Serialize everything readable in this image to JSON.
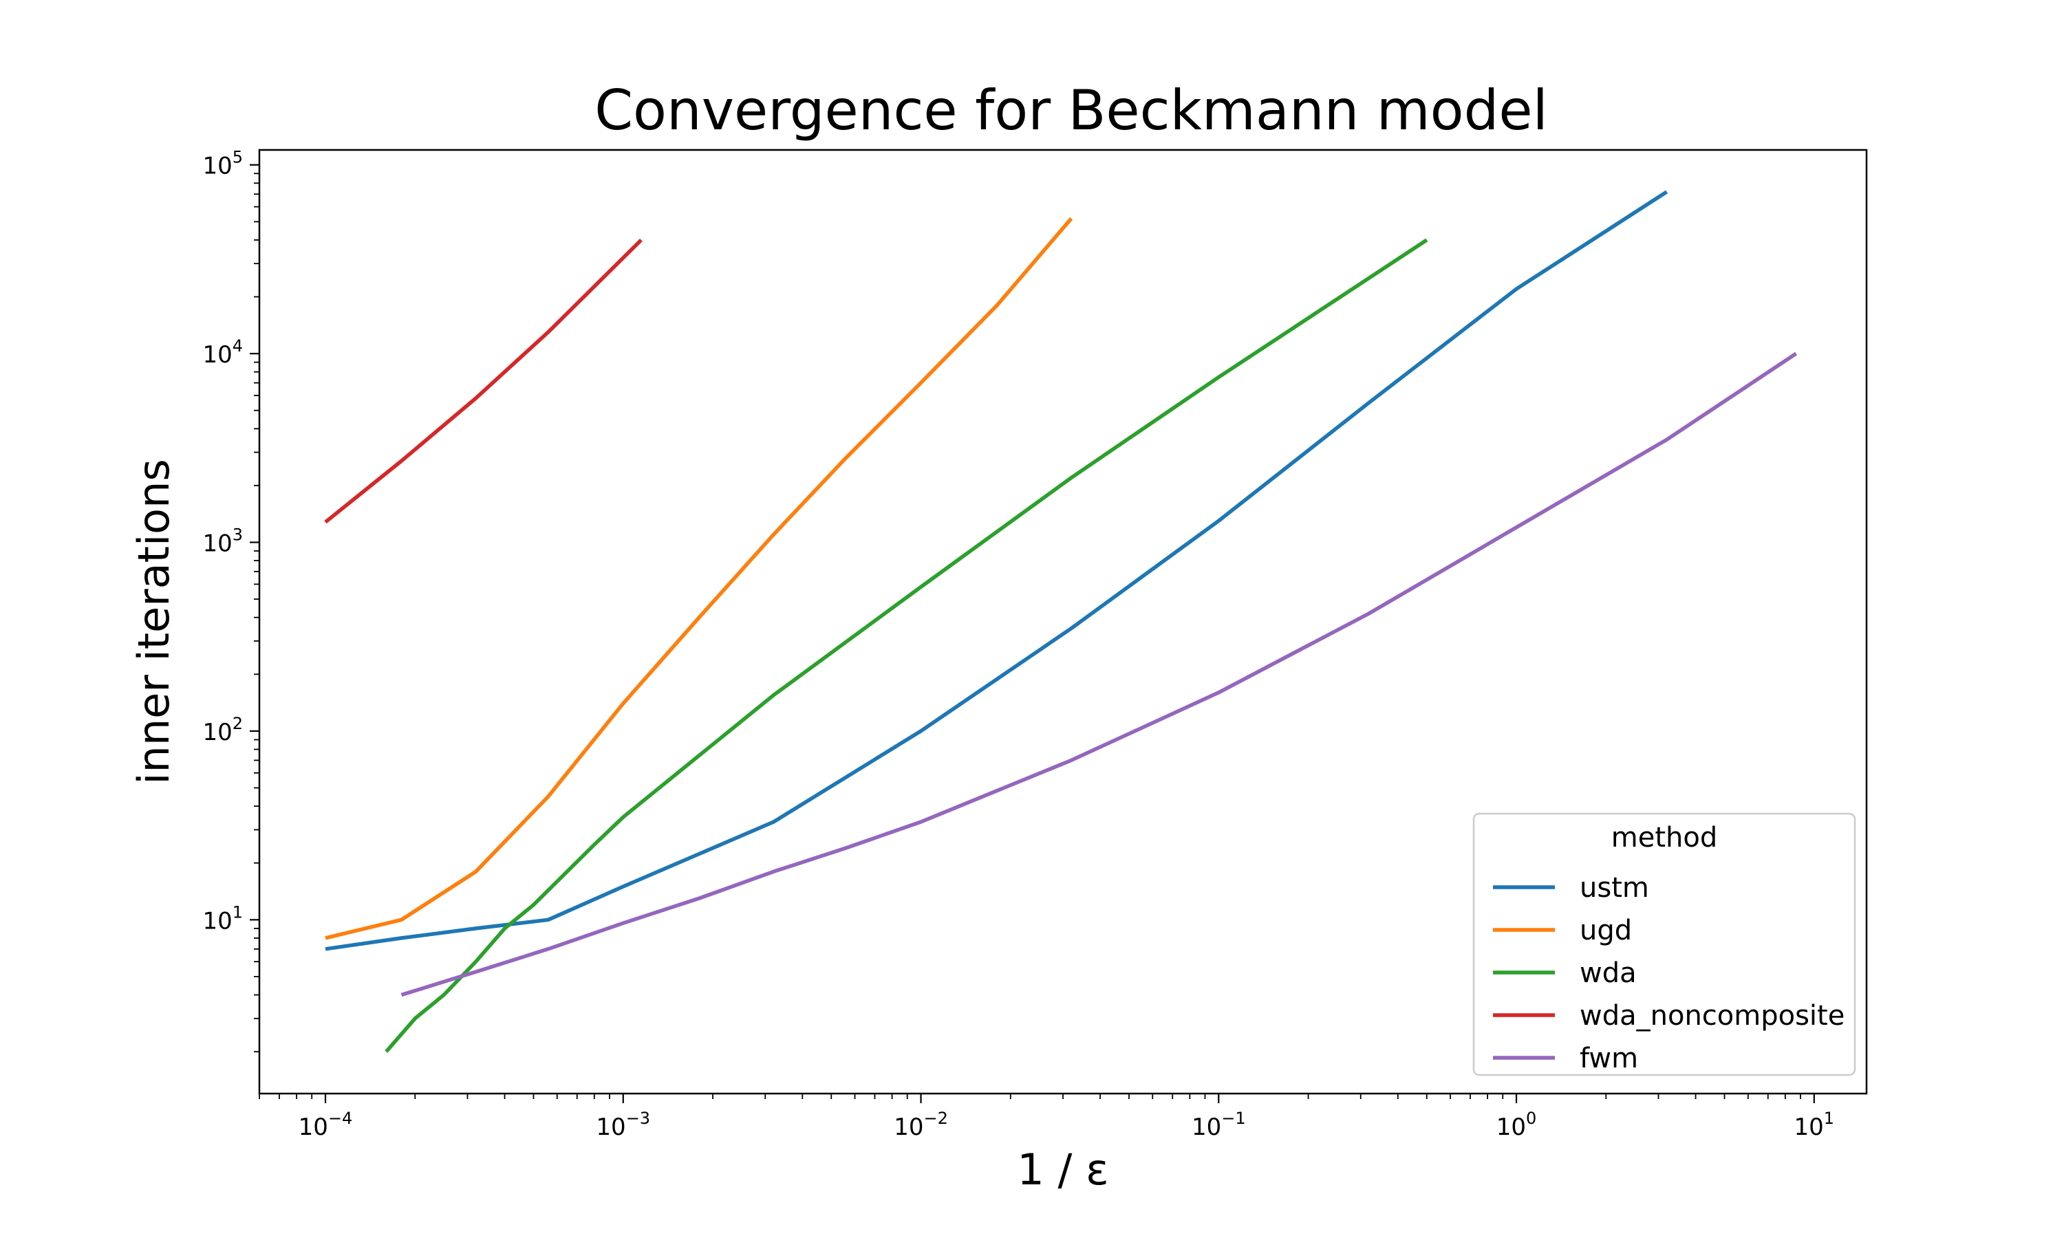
{
  "chart_data": {
    "type": "line",
    "title": "Convergence for Beckmann model",
    "xlabel": "1 / ε",
    "ylabel": "inner iterations",
    "xscale": "log",
    "yscale": "log",
    "xlim": [
      6e-05,
      15
    ],
    "ylim": [
      1.2,
      120000
    ],
    "xticks": [
      {
        "value": 0.0001,
        "base": "10",
        "exp": "−4"
      },
      {
        "value": 0.001,
        "base": "10",
        "exp": "−3"
      },
      {
        "value": 0.01,
        "base": "10",
        "exp": "−2"
      },
      {
        "value": 0.1,
        "base": "10",
        "exp": "−1"
      },
      {
        "value": 1,
        "base": "10",
        "exp": "0"
      },
      {
        "value": 10,
        "base": "10",
        "exp": "1"
      }
    ],
    "yticks": [
      {
        "value": 10,
        "base": "10",
        "exp": "1"
      },
      {
        "value": 100,
        "base": "10",
        "exp": "2"
      },
      {
        "value": 1000,
        "base": "10",
        "exp": "3"
      },
      {
        "value": 10000,
        "base": "10",
        "exp": "4"
      },
      {
        "value": 100000,
        "base": "10",
        "exp": "5"
      }
    ],
    "grid": false,
    "legend": {
      "title": "method",
      "position": "lower-right"
    },
    "series": [
      {
        "name": "ustm",
        "color": "#1f77b4",
        "x": [
          0.0001,
          0.00018,
          0.00032,
          0.00056,
          0.001,
          0.0032,
          0.01,
          0.032,
          0.1,
          0.32,
          1,
          3.2
        ],
        "y": [
          7,
          8,
          9,
          10,
          15,
          33,
          100,
          350,
          1300,
          5500,
          22000,
          72000
        ]
      },
      {
        "name": "ugd",
        "color": "#ff7f0e",
        "x": [
          0.0001,
          0.00018,
          0.00032,
          0.00056,
          0.001,
          0.0018,
          0.0032,
          0.0056,
          0.01,
          0.018,
          0.032
        ],
        "y": [
          8,
          10,
          18,
          45,
          140,
          400,
          1100,
          2800,
          7000,
          18000,
          52000
        ]
      },
      {
        "name": "wda",
        "color": "#2ca02c",
        "x": [
          0.00016,
          0.0002,
          0.00025,
          0.00032,
          0.0004,
          0.0005,
          0.0008,
          0.001,
          0.0032,
          0.01,
          0.032,
          0.1,
          0.5
        ],
        "y": [
          2,
          3,
          4,
          6,
          9,
          12,
          25,
          35,
          155,
          580,
          2200,
          7500,
          40000
        ]
      },
      {
        "name": "wda_noncomposite",
        "color": "#d62728",
        "x": [
          0.0001,
          0.00018,
          0.00032,
          0.00056,
          0.00115
        ],
        "y": [
          1280,
          2700,
          5800,
          13000,
          40000
        ]
      },
      {
        "name": "fwm",
        "color": "#9467bd",
        "x": [
          0.00018,
          0.00032,
          0.00056,
          0.001,
          0.0018,
          0.0032,
          0.0056,
          0.01,
          0.032,
          0.1,
          0.32,
          1,
          3.2,
          8.7
        ],
        "y": [
          4,
          5.3,
          7,
          9.6,
          13,
          18,
          24,
          33,
          70,
          160,
          420,
          1200,
          3500,
          10000
        ]
      }
    ]
  }
}
